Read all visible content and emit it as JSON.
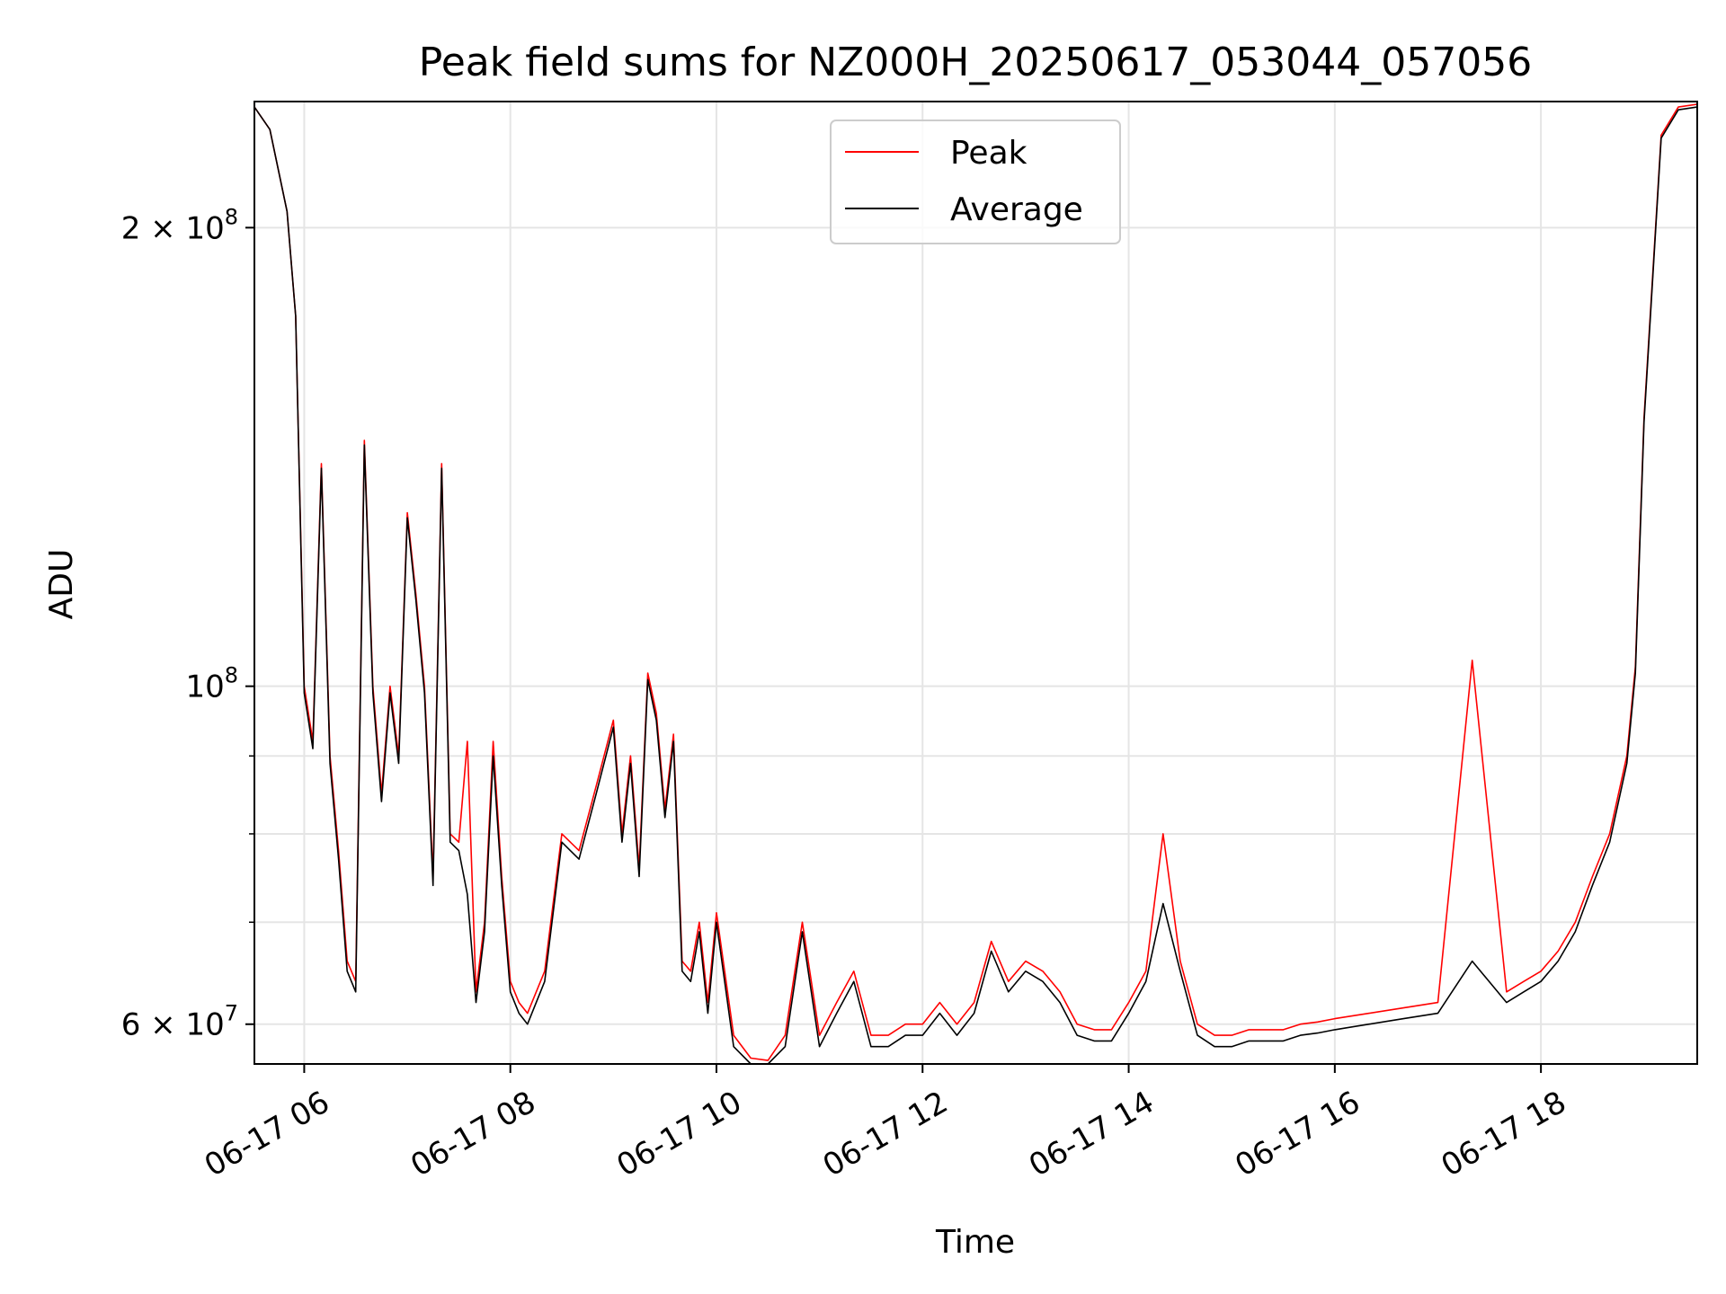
{
  "chart_data": {
    "type": "line",
    "title": "Peak field sums for NZ000H_20250617_053044_057056",
    "xlabel": "Time",
    "ylabel": "ADU",
    "xlim": [
      "2025-06-17 05:31",
      "2025-06-17 19:31"
    ],
    "ylim": [
      56500000,
      242000000
    ],
    "yscale": "log",
    "grid": true,
    "legend": "upper center",
    "x_ticks": [
      "06-17 06",
      "06-17 08",
      "06-17 10",
      "06-17 12",
      "06-17 14",
      "06-17 16",
      "06-17 18"
    ],
    "x_tick_values": [
      "2025-06-17 06:00",
      "2025-06-17 08:00",
      "2025-06-17 10:00",
      "2025-06-17 12:00",
      "2025-06-17 14:00",
      "2025-06-17 16:00",
      "2025-06-17 18:00"
    ],
    "y_ticks": [
      {
        "value": 60000000,
        "mantissa": "6",
        "exp": "7"
      },
      {
        "value": 100000000,
        "mantissa": "",
        "exp": "8"
      },
      {
        "value": 200000000,
        "mantissa": "2",
        "exp": "8"
      }
    ],
    "y_minor_ticks": [
      70000000,
      80000000,
      90000000
    ],
    "x": [
      "05:31",
      "05:40",
      "05:50",
      "05:55",
      "06:00",
      "06:05",
      "06:10",
      "06:15",
      "06:20",
      "06:25",
      "06:30",
      "06:35",
      "06:40",
      "06:45",
      "06:50",
      "06:55",
      "07:00",
      "07:05",
      "07:10",
      "07:15",
      "07:20",
      "07:25",
      "07:30",
      "07:35",
      "07:40",
      "07:45",
      "07:50",
      "07:55",
      "08:00",
      "08:05",
      "08:10",
      "08:20",
      "08:30",
      "08:40",
      "08:50",
      "09:00",
      "09:05",
      "09:10",
      "09:15",
      "09:20",
      "09:25",
      "09:30",
      "09:35",
      "09:40",
      "09:45",
      "09:50",
      "09:55",
      "10:00",
      "10:10",
      "10:20",
      "10:30",
      "10:40",
      "10:50",
      "11:00",
      "11:10",
      "11:20",
      "11:30",
      "11:40",
      "11:50",
      "12:00",
      "12:10",
      "12:20",
      "12:30",
      "12:40",
      "12:50",
      "13:00",
      "13:10",
      "13:20",
      "13:30",
      "13:40",
      "13:50",
      "14:00",
      "14:10",
      "14:20",
      "14:30",
      "14:40",
      "14:50",
      "15:00",
      "15:10",
      "15:20",
      "15:30",
      "15:40",
      "15:50",
      "16:00",
      "16:20",
      "16:40",
      "17:00",
      "17:20",
      "17:40",
      "17:50",
      "18:00",
      "18:10",
      "18:20",
      "18:30",
      "18:40",
      "18:50",
      "18:55",
      "19:00",
      "19:10",
      "19:20",
      "19:31"
    ],
    "series": [
      {
        "name": "Peak",
        "color": "#ff0000",
        "values": [
          240000000,
          232000000,
          205000000,
          175000000,
          100000000,
          92000000,
          140000000,
          90000000,
          78000000,
          66000000,
          64000000,
          145000000,
          100000000,
          85000000,
          100000000,
          90000000,
          130000000,
          115000000,
          100000000,
          75000000,
          140000000,
          80000000,
          79000000,
          92000000,
          63000000,
          70000000,
          92000000,
          75000000,
          64000000,
          62000000,
          61000000,
          65000000,
          80000000,
          78000000,
          86000000,
          95000000,
          80000000,
          90000000,
          76000000,
          102000000,
          96000000,
          83000000,
          93000000,
          66000000,
          65000000,
          70000000,
          62000000,
          71000000,
          59000000,
          57000000,
          56800000,
          59000000,
          70000000,
          59000000,
          62000000,
          65000000,
          59000000,
          59000000,
          60000000,
          60000000,
          62000000,
          60000000,
          62000000,
          68000000,
          64000000,
          66000000,
          65000000,
          63000000,
          60000000,
          59500000,
          59500000,
          62000000,
          65000000,
          80000000,
          66000000,
          60000000,
          59000000,
          59000000,
          59500000,
          59500000,
          59500000,
          60000000,
          60200000,
          60500000,
          61000000,
          61500000,
          62000000,
          104000000,
          63000000,
          64000000,
          65000000,
          67000000,
          70000000,
          75000000,
          80000000,
          90000000,
          103000000,
          150000000,
          230000000,
          240000000,
          241000000
        ]
      },
      {
        "name": "Average",
        "color": "#000000",
        "values": [
          240000000,
          232000000,
          205000000,
          175000000,
          99000000,
          91000000,
          139000000,
          89000000,
          77000000,
          65000000,
          63000000,
          144000000,
          99000000,
          84000000,
          99000000,
          89000000,
          129000000,
          114000000,
          99000000,
          74000000,
          139000000,
          79000000,
          78000000,
          73000000,
          62000000,
          69000000,
          90000000,
          74000000,
          63000000,
          61000000,
          60000000,
          64000000,
          79000000,
          77000000,
          85000000,
          94000000,
          79000000,
          89000000,
          75000000,
          101000000,
          95000000,
          82000000,
          92000000,
          65000000,
          64000000,
          69000000,
          61000000,
          70000000,
          58000000,
          56500000,
          56500000,
          58000000,
          69000000,
          58000000,
          61000000,
          64000000,
          58000000,
          58000000,
          59000000,
          59000000,
          61000000,
          59000000,
          61000000,
          67000000,
          63000000,
          65000000,
          64000000,
          62000000,
          59000000,
          58500000,
          58500000,
          61000000,
          64000000,
          72000000,
          65000000,
          59000000,
          58000000,
          58000000,
          58500000,
          58500000,
          58500000,
          59000000,
          59200000,
          59500000,
          60000000,
          60500000,
          61000000,
          66000000,
          62000000,
          63000000,
          64000000,
          66000000,
          69000000,
          74000000,
          79000000,
          89000000,
          102000000,
          149000000,
          229000000,
          239000000,
          240000000
        ]
      }
    ]
  }
}
